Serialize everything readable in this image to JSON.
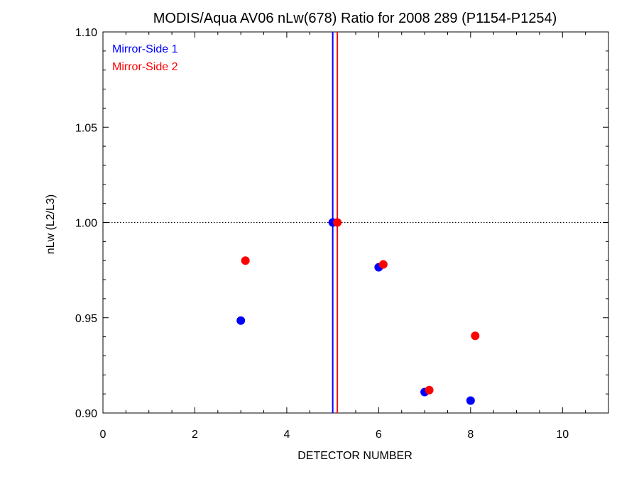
{
  "chart_data": {
    "type": "scatter",
    "title": "MODIS/Aqua AV06 nLw(678) Ratio for 2008 289 (P1154-P1254)",
    "xlabel": "DETECTOR NUMBER",
    "ylabel": "nLw (L2/L3)",
    "xlim": [
      0,
      11
    ],
    "ylim": [
      0.9,
      1.1
    ],
    "x_ticks": [
      "0",
      "2",
      "4",
      "6",
      "8",
      "10"
    ],
    "y_ticks": [
      "0.90",
      "0.95",
      "1.00",
      "1.05",
      "1.10"
    ],
    "reference_line_y": 1.0,
    "legend_position": "top-left",
    "series": [
      {
        "name": "Mirror-Side 1",
        "color": "#0000ff",
        "vertical_line_x": 5.0,
        "points": [
          {
            "x": 3.0,
            "y": 0.9485
          },
          {
            "x": 5.0,
            "y": 1.0
          },
          {
            "x": 6.0,
            "y": 0.9765
          },
          {
            "x": 7.0,
            "y": 0.911
          },
          {
            "x": 8.0,
            "y": 0.9065
          }
        ]
      },
      {
        "name": "Mirror-Side 2",
        "color": "#ff0000",
        "vertical_line_x": 5.1,
        "points": [
          {
            "x": 3.1,
            "y": 0.98
          },
          {
            "x": 5.1,
            "y": 1.0
          },
          {
            "x": 6.1,
            "y": 0.978
          },
          {
            "x": 7.1,
            "y": 0.912
          },
          {
            "x": 8.1,
            "y": 0.9405
          }
        ]
      }
    ]
  }
}
